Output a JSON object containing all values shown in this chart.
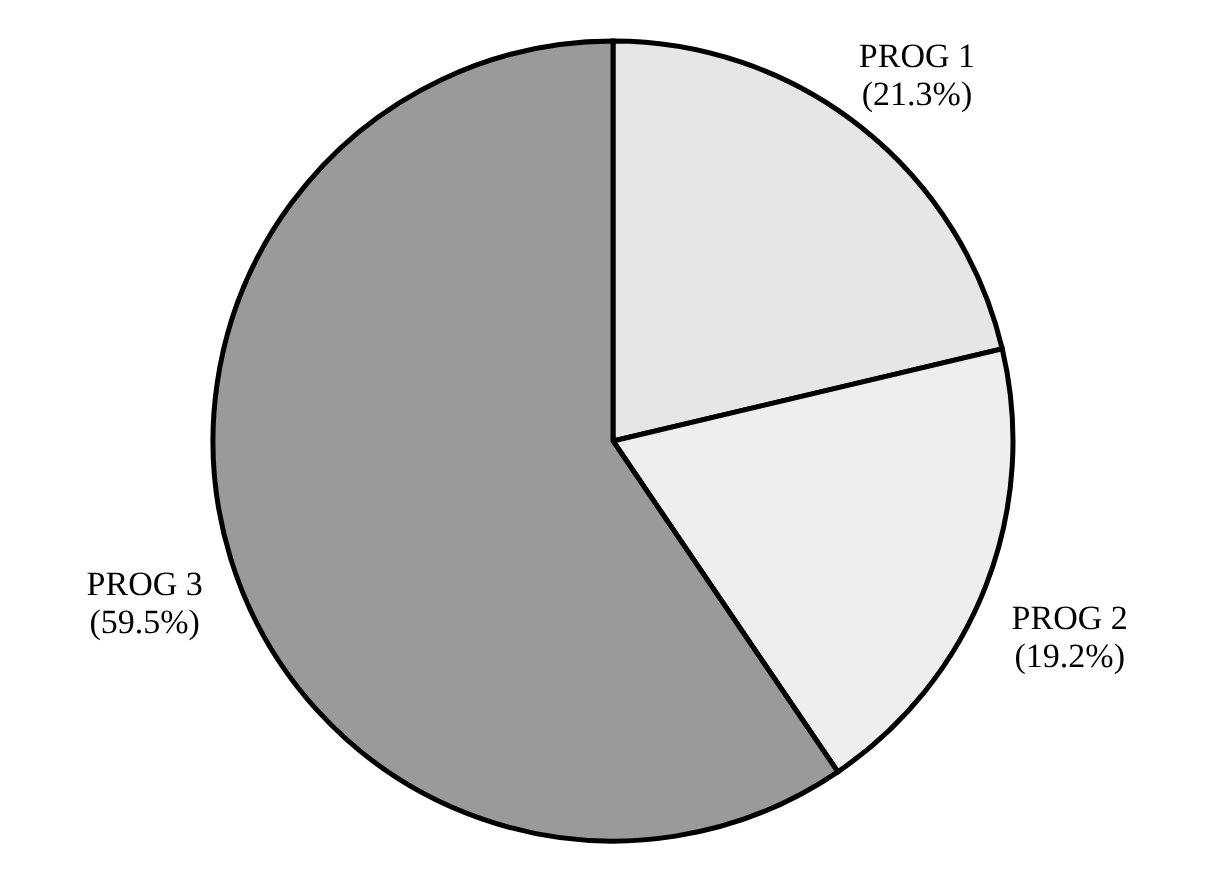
{
  "chart_data": {
    "type": "pie",
    "categories": [
      "PROG 1",
      "PROG 2",
      "PROG 3"
    ],
    "values": [
      21.3,
      19.2,
      59.5
    ],
    "value_labels": [
      "(21.3%)",
      "(19.2%)",
      "(59.5%)"
    ],
    "colors": [
      "#e6e6e6",
      "#eeeeee",
      "#9a9a9a"
    ]
  }
}
